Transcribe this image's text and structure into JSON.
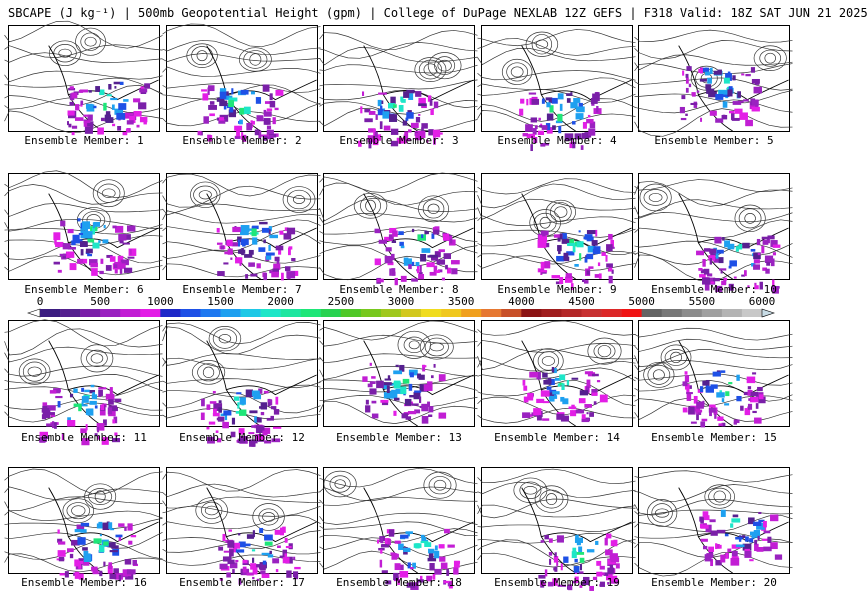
{
  "header": {
    "title": "SBCAPE (J kg⁻¹) | 500mb Geopotential Height (gpm) | College of DuPage NEXLAB 12Z GEFS | F318 Valid: 18Z SAT JUN 21 2025"
  },
  "colorbar": {
    "ticks": [
      "0",
      "500",
      "1000",
      "1500",
      "2000",
      "2500",
      "3000",
      "3500",
      "4000",
      "4500",
      "5000",
      "5500",
      "6000"
    ],
    "colors": [
      "#3b1c80",
      "#55208f",
      "#7a1fa8",
      "#9a22c0",
      "#c21ed4",
      "#e31ee6",
      "#1e28c8",
      "#1e50e6",
      "#1e78f0",
      "#1ea0f0",
      "#1ec8e6",
      "#1ee6c8",
      "#1ee6a0",
      "#1ee678",
      "#28d250",
      "#50c828",
      "#78c81e",
      "#a0c81e",
      "#d2c81e",
      "#f0dc1e",
      "#f0c81e",
      "#f0a01e",
      "#e67832",
      "#c85028",
      "#8c1414",
      "#a01e1e",
      "#b42828",
      "#c83232",
      "#dc2828",
      "#f01414",
      "#646464",
      "#787878",
      "#8c8c8c",
      "#a0a0a0",
      "#b4b4b4",
      "#c8c8c8"
    ]
  },
  "members": [
    {
      "label": "Ensemble Member: 1"
    },
    {
      "label": "Ensemble Member: 2"
    },
    {
      "label": "Ensemble Member: 3"
    },
    {
      "label": "Ensemble Member: 4"
    },
    {
      "label": "Ensemble Member: 5"
    },
    {
      "label": "Ensemble Member: 6"
    },
    {
      "label": "Ensemble Member: 7"
    },
    {
      "label": "Ensemble Member: 8"
    },
    {
      "label": "Ensemble Member: 9"
    },
    {
      "label": "Ensemble Member: 10"
    },
    {
      "label": "Ensemble Member: 11"
    },
    {
      "label": "Ensemble Member: 12"
    },
    {
      "label": "Ensemble Member: 13"
    },
    {
      "label": "Ensemble Member: 14"
    },
    {
      "label": "Ensemble Member: 15"
    },
    {
      "label": "Ensemble Member: 16"
    },
    {
      "label": "Ensemble Member: 17"
    },
    {
      "label": "Ensemble Member: 18"
    },
    {
      "label": "Ensemble Member: 19"
    },
    {
      "label": "Ensemble Member: 20"
    }
  ]
}
